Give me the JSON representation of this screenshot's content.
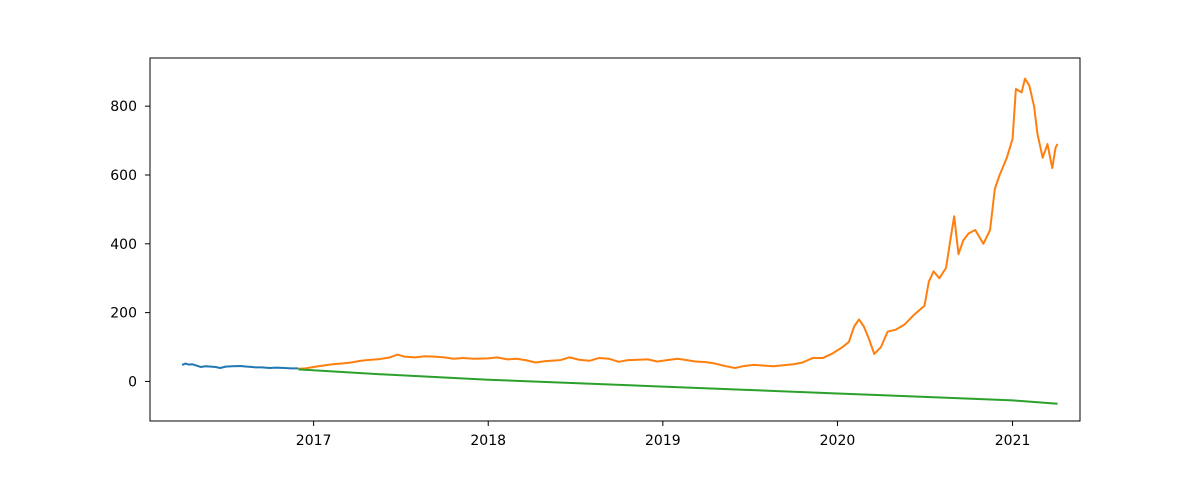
{
  "chart_data": {
    "type": "line",
    "title": "",
    "xlabel": "",
    "ylabel": "",
    "xlim": [
      "2016-01-25",
      "2021-05-22"
    ],
    "ylim": [
      -115,
      940
    ],
    "grid": false,
    "legend": "none",
    "x_ticks": [
      "2017",
      "2018",
      "2019",
      "2020",
      "2021"
    ],
    "y_ticks": [
      0,
      200,
      400,
      600,
      800
    ],
    "series": [
      {
        "color": "#1f77b4",
        "points": [
          [
            "2016-04-01",
            48
          ],
          [
            "2016-04-08",
            52
          ],
          [
            "2016-04-15",
            49
          ],
          [
            "2016-04-22",
            50
          ],
          [
            "2016-05-01",
            46
          ],
          [
            "2016-05-10",
            42
          ],
          [
            "2016-05-20",
            44
          ],
          [
            "2016-06-01",
            43
          ],
          [
            "2016-06-10",
            42
          ],
          [
            "2016-06-20",
            39
          ],
          [
            "2016-07-01",
            43
          ],
          [
            "2016-07-15",
            44
          ],
          [
            "2016-08-01",
            45
          ],
          [
            "2016-08-15",
            43
          ],
          [
            "2016-09-01",
            41
          ],
          [
            "2016-09-15",
            41
          ],
          [
            "2016-10-01",
            39
          ],
          [
            "2016-10-15",
            40
          ],
          [
            "2016-11-01",
            39
          ],
          [
            "2016-11-15",
            38
          ],
          [
            "2016-11-30",
            38
          ]
        ]
      },
      {
        "color": "#ff7f0e",
        "points": [
          [
            "2016-11-30",
            37
          ],
          [
            "2016-12-15",
            38
          ],
          [
            "2017-01-01",
            42
          ],
          [
            "2017-01-20",
            46
          ],
          [
            "2017-02-10",
            50
          ],
          [
            "2017-03-01",
            52
          ],
          [
            "2017-03-20",
            55
          ],
          [
            "2017-04-10",
            60
          ],
          [
            "2017-05-01",
            63
          ],
          [
            "2017-05-20",
            65
          ],
          [
            "2017-06-10",
            70
          ],
          [
            "2017-06-25",
            78
          ],
          [
            "2017-07-10",
            72
          ],
          [
            "2017-08-01",
            70
          ],
          [
            "2017-08-20",
            73
          ],
          [
            "2017-09-10",
            72
          ],
          [
            "2017-10-01",
            70
          ],
          [
            "2017-10-20",
            66
          ],
          [
            "2017-11-10",
            68
          ],
          [
            "2017-12-01",
            66
          ],
          [
            "2018-01-01",
            67
          ],
          [
            "2018-01-20",
            70
          ],
          [
            "2018-02-10",
            64
          ],
          [
            "2018-03-01",
            66
          ],
          [
            "2018-03-20",
            62
          ],
          [
            "2018-04-10",
            55
          ],
          [
            "2018-05-01",
            59
          ],
          [
            "2018-06-01",
            62
          ],
          [
            "2018-06-20",
            70
          ],
          [
            "2018-07-10",
            63
          ],
          [
            "2018-08-01",
            60
          ],
          [
            "2018-08-20",
            68
          ],
          [
            "2018-09-10",
            66
          ],
          [
            "2018-10-01",
            57
          ],
          [
            "2018-10-20",
            62
          ],
          [
            "2018-11-10",
            63
          ],
          [
            "2018-12-01",
            64
          ],
          [
            "2018-12-20",
            58
          ],
          [
            "2019-01-10",
            62
          ],
          [
            "2019-02-01",
            66
          ],
          [
            "2019-02-20",
            62
          ],
          [
            "2019-03-10",
            58
          ],
          [
            "2019-04-01",
            56
          ],
          [
            "2019-04-20",
            52
          ],
          [
            "2019-05-10",
            45
          ],
          [
            "2019-06-01",
            39
          ],
          [
            "2019-06-20",
            45
          ],
          [
            "2019-07-10",
            48
          ],
          [
            "2019-08-01",
            46
          ],
          [
            "2019-08-20",
            44
          ],
          [
            "2019-09-10",
            47
          ],
          [
            "2019-10-01",
            50
          ],
          [
            "2019-10-20",
            55
          ],
          [
            "2019-11-10",
            68
          ],
          [
            "2019-12-01",
            68
          ],
          [
            "2019-12-20",
            80
          ],
          [
            "2020-01-10",
            98
          ],
          [
            "2020-01-25",
            115
          ],
          [
            "2020-02-05",
            160
          ],
          [
            "2020-02-15",
            180
          ],
          [
            "2020-02-25",
            160
          ],
          [
            "2020-03-05",
            130
          ],
          [
            "2020-03-18",
            80
          ],
          [
            "2020-04-01",
            100
          ],
          [
            "2020-04-15",
            145
          ],
          [
            "2020-05-01",
            150
          ],
          [
            "2020-05-20",
            165
          ],
          [
            "2020-06-10",
            195
          ],
          [
            "2020-07-01",
            220
          ],
          [
            "2020-07-10",
            290
          ],
          [
            "2020-07-20",
            320
          ],
          [
            "2020-08-01",
            300
          ],
          [
            "2020-08-15",
            330
          ],
          [
            "2020-08-25",
            420
          ],
          [
            "2020-09-01",
            480
          ],
          [
            "2020-09-10",
            370
          ],
          [
            "2020-09-20",
            410
          ],
          [
            "2020-10-01",
            430
          ],
          [
            "2020-10-15",
            440
          ],
          [
            "2020-11-01",
            400
          ],
          [
            "2020-11-15",
            440
          ],
          [
            "2020-11-25",
            560
          ],
          [
            "2020-12-05",
            600
          ],
          [
            "2020-12-20",
            650
          ],
          [
            "2021-01-01",
            705
          ],
          [
            "2021-01-08",
            850
          ],
          [
            "2021-01-20",
            840
          ],
          [
            "2021-01-27",
            880
          ],
          [
            "2021-02-05",
            860
          ],
          [
            "2021-02-15",
            800
          ],
          [
            "2021-02-22",
            720
          ],
          [
            "2021-03-05",
            650
          ],
          [
            "2021-03-15",
            690
          ],
          [
            "2021-03-25",
            620
          ],
          [
            "2021-04-01",
            680
          ],
          [
            "2021-04-05",
            690
          ]
        ]
      },
      {
        "color": "#2ca02c",
        "points": [
          [
            "2016-11-30",
            35
          ],
          [
            "2017-06-01",
            20
          ],
          [
            "2018-01-01",
            5
          ],
          [
            "2018-07-01",
            -5
          ],
          [
            "2019-01-01",
            -15
          ],
          [
            "2019-07-01",
            -25
          ],
          [
            "2020-01-01",
            -35
          ],
          [
            "2020-07-01",
            -45
          ],
          [
            "2021-01-01",
            -55
          ],
          [
            "2021-04-05",
            -65
          ]
        ]
      }
    ]
  }
}
